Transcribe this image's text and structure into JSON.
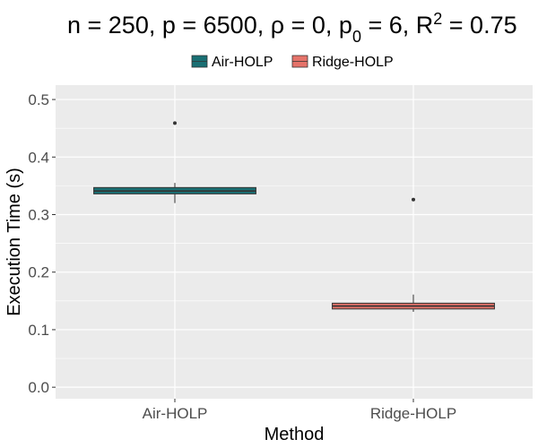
{
  "chart_data": {
    "type": "box",
    "title": {
      "n_label": "n = 250",
      "p_label": "p = 6500",
      "rho_label": "ρ = 0",
      "p0_label": "p",
      "p0_sub": "0",
      "p0_value": " = 6",
      "r2_label": "R",
      "r2_sup": "2",
      "r2_value": " = 0.75"
    },
    "xlabel": "Method",
    "ylabel": "Execution Time (s)",
    "ylim": [
      -0.02,
      0.525
    ],
    "yticks": [
      0.0,
      0.1,
      0.2,
      0.3,
      0.4,
      0.5
    ],
    "ytick_labels": [
      "0.0",
      "0.1",
      "0.2",
      "0.3",
      "0.4",
      "0.5"
    ],
    "categories": [
      "Air-HOLP",
      "Ridge-HOLP"
    ],
    "legend": {
      "position": "top",
      "entries": [
        "Air-HOLP",
        "Ridge-HOLP"
      ]
    },
    "grid": true,
    "series": [
      {
        "name": "Air-HOLP",
        "color": "#1a7074",
        "min": 0.32,
        "q1": 0.336,
        "median": 0.341,
        "q3": 0.347,
        "max": 0.355,
        "outliers": [
          0.459
        ]
      },
      {
        "name": "Ridge-HOLP",
        "color": "#e5736a",
        "min": 0.131,
        "q1": 0.136,
        "median": 0.141,
        "q3": 0.146,
        "max": 0.161,
        "outliers": [
          0.326
        ]
      }
    ]
  }
}
